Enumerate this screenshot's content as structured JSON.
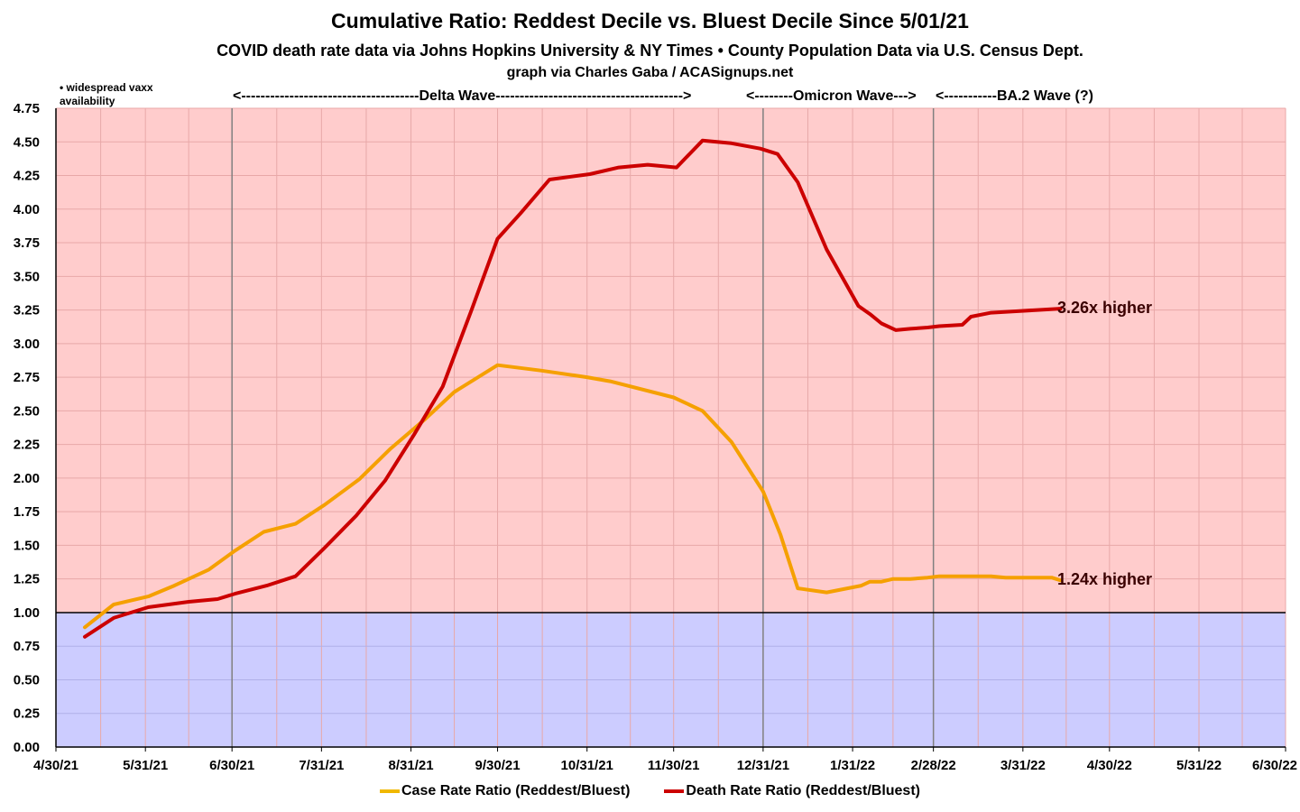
{
  "header": {
    "title": "Cumulative Ratio: Reddest Decile vs. Bluest Decile Since 5/01/21",
    "subtitle": "COVID death rate data via Johns Hopkins University & NY Times • County Population Data via U.S. Census Dept.",
    "credit": "graph via Charles Gaba / ACASignups.net"
  },
  "annotations": {
    "vaxx_note": "• widespread vaxx availability",
    "delta_wave": "<-------------------------------------Delta Wave--------------------------------------->",
    "omicron_wave": "<--------Omicron Wave--->",
    "ba2_wave": "<-----------BA.2 Wave (?)",
    "death_end_label": "3.26x higher",
    "case_end_label": "1.24x higher"
  },
  "colors": {
    "above_one": "#ffcccc",
    "below_one": "#ccccff",
    "case_line": "#f5a000",
    "death_line": "#cc0000",
    "legend_case": "#f0b800",
    "legend_death": "#cc0000",
    "wave_dividers": "#808080",
    "grid": "#e8a8a8"
  },
  "chart_data": {
    "type": "line",
    "x_axis": {
      "min": "2021-04-30",
      "max": "2022-06-30",
      "tick_dates": [
        "2021-04-30",
        "2021-05-31",
        "2021-06-30",
        "2021-07-31",
        "2021-08-31",
        "2021-09-30",
        "2021-10-31",
        "2021-11-30",
        "2021-12-31",
        "2022-01-31",
        "2022-02-28",
        "2022-03-31",
        "2022-04-30",
        "2022-05-31",
        "2022-06-30"
      ],
      "tick_labels": [
        "4/30/21",
        "5/31/21",
        "6/30/21",
        "7/31/21",
        "8/31/21",
        "9/30/21",
        "10/31/21",
        "11/30/21",
        "12/31/21",
        "1/31/22",
        "2/28/22",
        "3/31/22",
        "4/30/22",
        "5/31/22",
        "6/30/22"
      ]
    },
    "y_axis": {
      "min": 0,
      "max": 4.75,
      "step": 0.25,
      "tick_labels": [
        "0.00",
        "0.25",
        "0.50",
        "0.75",
        "1.00",
        "1.25",
        "1.50",
        "1.75",
        "2.00",
        "2.25",
        "2.50",
        "2.75",
        "3.00",
        "3.25",
        "3.50",
        "3.75",
        "4.00",
        "4.25",
        "4.50",
        "4.75"
      ]
    },
    "reference_line": 1.0,
    "wave_dividers": [
      "2021-06-30",
      "2021-12-31",
      "2022-02-28"
    ],
    "grid": true,
    "legend_position": "bottom",
    "series": [
      {
        "name": "Case Rate Ratio (Reddest/Bluest)",
        "points": [
          [
            "2021-05-10",
            0.89
          ],
          [
            "2021-05-20",
            1.06
          ],
          [
            "2021-06-01",
            1.12
          ],
          [
            "2021-06-10",
            1.2
          ],
          [
            "2021-06-22",
            1.32
          ],
          [
            "2021-07-01",
            1.46
          ],
          [
            "2021-07-11",
            1.6
          ],
          [
            "2021-07-22",
            1.66
          ],
          [
            "2021-08-01",
            1.8
          ],
          [
            "2021-08-13",
            1.99
          ],
          [
            "2021-08-24",
            2.22
          ],
          [
            "2021-09-05",
            2.44
          ],
          [
            "2021-09-15",
            2.64
          ],
          [
            "2021-09-30",
            2.84
          ],
          [
            "2021-10-15",
            2.8
          ],
          [
            "2021-10-31",
            2.75
          ],
          [
            "2021-11-08",
            2.72
          ],
          [
            "2021-11-30",
            2.6
          ],
          [
            "2021-12-10",
            2.5
          ],
          [
            "2021-12-20",
            2.27
          ],
          [
            "2021-12-31",
            1.9
          ],
          [
            "2022-01-06",
            1.58
          ],
          [
            "2022-01-12",
            1.18
          ],
          [
            "2022-01-22",
            1.15
          ],
          [
            "2022-02-03",
            1.2
          ],
          [
            "2022-02-06",
            1.23
          ],
          [
            "2022-02-10",
            1.23
          ],
          [
            "2022-02-14",
            1.25
          ],
          [
            "2022-02-20",
            1.25
          ],
          [
            "2022-02-26",
            1.26
          ],
          [
            "2022-03-02",
            1.27
          ],
          [
            "2022-03-10",
            1.27
          ],
          [
            "2022-03-20",
            1.27
          ],
          [
            "2022-03-25",
            1.26
          ],
          [
            "2022-04-03",
            1.26
          ],
          [
            "2022-04-10",
            1.26
          ],
          [
            "2022-04-13",
            1.24
          ]
        ]
      },
      {
        "name": "Death Rate Ratio (Reddest/Bluest)",
        "points": [
          [
            "2021-05-10",
            0.82
          ],
          [
            "2021-05-20",
            0.96
          ],
          [
            "2021-06-01",
            1.04
          ],
          [
            "2021-06-15",
            1.08
          ],
          [
            "2021-06-25",
            1.1
          ],
          [
            "2021-07-01",
            1.14
          ],
          [
            "2021-07-12",
            1.2
          ],
          [
            "2021-07-22",
            1.27
          ],
          [
            "2021-08-01",
            1.48
          ],
          [
            "2021-08-12",
            1.72
          ],
          [
            "2021-08-22",
            1.98
          ],
          [
            "2021-09-01",
            2.32
          ],
          [
            "2021-09-11",
            2.68
          ],
          [
            "2021-09-21",
            3.25
          ],
          [
            "2021-09-30",
            3.78
          ],
          [
            "2021-10-08",
            3.97
          ],
          [
            "2021-10-18",
            4.22
          ],
          [
            "2021-11-01",
            4.26
          ],
          [
            "2021-11-11",
            4.31
          ],
          [
            "2021-11-21",
            4.33
          ],
          [
            "2021-12-01",
            4.31
          ],
          [
            "2021-12-10",
            4.51
          ],
          [
            "2021-12-20",
            4.49
          ],
          [
            "2021-12-30",
            4.45
          ],
          [
            "2022-01-05",
            4.41
          ],
          [
            "2022-01-12",
            4.2
          ],
          [
            "2022-01-22",
            3.7
          ],
          [
            "2022-02-02",
            3.28
          ],
          [
            "2022-02-06",
            3.22
          ],
          [
            "2022-02-10",
            3.15
          ],
          [
            "2022-02-15",
            3.1
          ],
          [
            "2022-02-20",
            3.11
          ],
          [
            "2022-02-26",
            3.12
          ],
          [
            "2022-03-02",
            3.13
          ],
          [
            "2022-03-10",
            3.14
          ],
          [
            "2022-03-13",
            3.2
          ],
          [
            "2022-03-20",
            3.23
          ],
          [
            "2022-03-28",
            3.24
          ],
          [
            "2022-04-05",
            3.25
          ],
          [
            "2022-04-13",
            3.26
          ]
        ]
      }
    ]
  }
}
